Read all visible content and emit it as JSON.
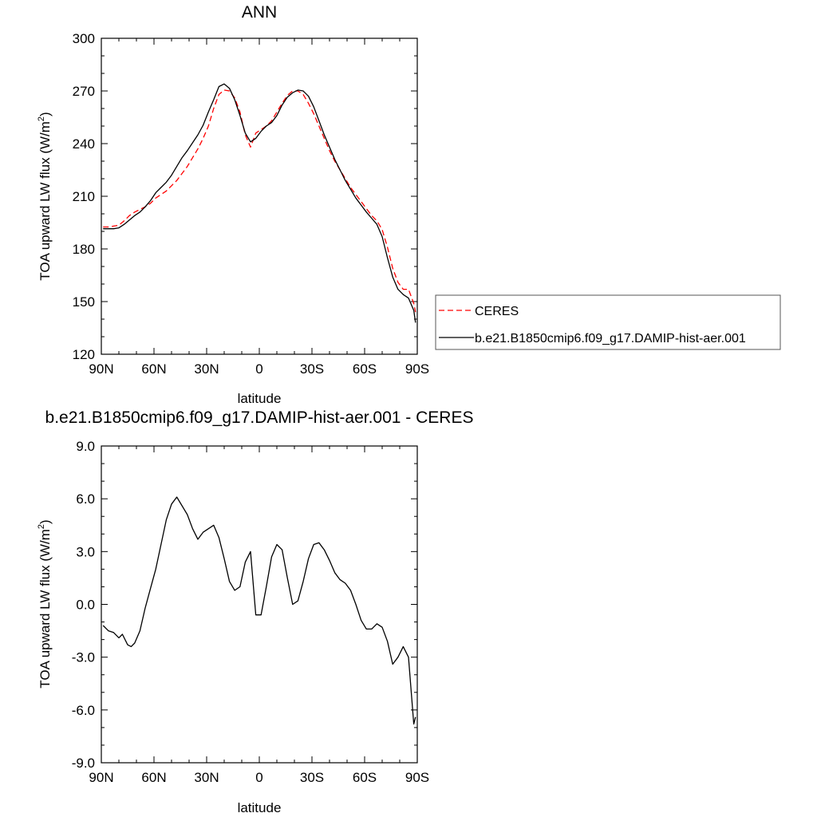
{
  "colors": {
    "model": "#000000",
    "ceres": "#ff0000",
    "frame": "#000000",
    "legend_border": "#555555"
  },
  "chart_data": [
    {
      "type": "line",
      "title": "ANN",
      "xlabel": "latitude",
      "ylabel": "TOA upward LW flux (W/m",
      "ylabel_sup": "2",
      "ylabel_tail": ")",
      "xlim": [
        90,
        -90
      ],
      "ylim": [
        120,
        300
      ],
      "xticks": [
        {
          "value": 90,
          "label": "90N"
        },
        {
          "value": 60,
          "label": "60N"
        },
        {
          "value": 30,
          "label": "30N"
        },
        {
          "value": 0,
          "label": "0"
        },
        {
          "value": -30,
          "label": "30S"
        },
        {
          "value": -60,
          "label": "60S"
        },
        {
          "value": -90,
          "label": "90S"
        }
      ],
      "yticks": [
        {
          "value": 300,
          "label": "300"
        },
        {
          "value": 270,
          "label": "270"
        },
        {
          "value": 240,
          "label": "240"
        },
        {
          "value": 210,
          "label": "210"
        },
        {
          "value": 180,
          "label": "180"
        },
        {
          "value": 150,
          "label": "150"
        },
        {
          "value": 120,
          "label": "120"
        }
      ],
      "legend_position": "right",
      "series": [
        {
          "name": "CERES",
          "color": "#ff0000",
          "dash": "dashed",
          "x": [
            89,
            86,
            83,
            80,
            77,
            74,
            71,
            68,
            65,
            62,
            59,
            56,
            53,
            50,
            47,
            44,
            41,
            38,
            35,
            32,
            29,
            26,
            23,
            20,
            17,
            14,
            11,
            8,
            5,
            2,
            -1,
            -4,
            -7,
            -10,
            -13,
            -16,
            -19,
            -22,
            -25,
            -28,
            -31,
            -34,
            -37,
            -40,
            -43,
            -46,
            -49,
            -52,
            -55,
            -58,
            -61,
            -64,
            -67,
            -70,
            -73,
            -76,
            -79,
            -82,
            -85,
            -88,
            -89
          ],
          "y": [
            192.5,
            192.5,
            193,
            193.5,
            196,
            199,
            201,
            202.5,
            204,
            206,
            209,
            211,
            213,
            216,
            219,
            223,
            227,
            232,
            237,
            243,
            250,
            260,
            268,
            270.5,
            270,
            266,
            258,
            245,
            238,
            246,
            248,
            250,
            253,
            258,
            263,
            267.5,
            270,
            270,
            268,
            263,
            257,
            250,
            243,
            236,
            230,
            225,
            220,
            215,
            211,
            207,
            203,
            199,
            196,
            191,
            181,
            169,
            161,
            157,
            157,
            149,
            144
          ]
        },
        {
          "name": "b.e21.B1850cmip6.f09_g17.DAMIP-hist-aer.001",
          "color": "#000000",
          "dash": "solid",
          "x": [
            89,
            86,
            83,
            80,
            77,
            74,
            71,
            68,
            65,
            62,
            59,
            56,
            53,
            50,
            47,
            44,
            41,
            38,
            35,
            32,
            29,
            26,
            23,
            20,
            17,
            14,
            11,
            8,
            5,
            2,
            -1,
            -4,
            -7,
            -10,
            -13,
            -16,
            -19,
            -22,
            -25,
            -28,
            -31,
            -34,
            -37,
            -40,
            -43,
            -46,
            -49,
            -52,
            -55,
            -58,
            -61,
            -64,
            -67,
            -70,
            -73,
            -76,
            -79,
            -82,
            -85,
            -88,
            -89
          ],
          "y": [
            191.5,
            191.5,
            191.5,
            192,
            194,
            196.5,
            199,
            201,
            204,
            207.5,
            212,
            215,
            218,
            222,
            227,
            232,
            236,
            240.5,
            245,
            250.5,
            258,
            265,
            272.5,
            274,
            271.5,
            265,
            256,
            246,
            241,
            243,
            247,
            250,
            252,
            256,
            262,
            266.5,
            269,
            270.5,
            270,
            267,
            261,
            253,
            245,
            238,
            231,
            225,
            219,
            214,
            209,
            205,
            201,
            197.5,
            194,
            187,
            175,
            164,
            157,
            154,
            152,
            145,
            138
          ]
        }
      ]
    },
    {
      "type": "line",
      "title": "b.e21.B1850cmip6.f09_g17.DAMIP-hist-aer.001 - CERES",
      "xlabel": "latitude",
      "ylabel": "TOA upward LW flux (W/m",
      "ylabel_sup": "2",
      "ylabel_tail": ")",
      "xlim": [
        90,
        -90
      ],
      "ylim": [
        -9,
        9
      ],
      "xticks": [
        {
          "value": 90,
          "label": "90N"
        },
        {
          "value": 60,
          "label": "60N"
        },
        {
          "value": 30,
          "label": "30N"
        },
        {
          "value": 0,
          "label": "0"
        },
        {
          "value": -30,
          "label": "30S"
        },
        {
          "value": -60,
          "label": "60S"
        },
        {
          "value": -90,
          "label": "90S"
        }
      ],
      "yticks": [
        {
          "value": 9,
          "label": "9.0"
        },
        {
          "value": 6,
          "label": "6.0"
        },
        {
          "value": 3,
          "label": "3.0"
        },
        {
          "value": 0,
          "label": "0.0"
        },
        {
          "value": -3,
          "label": "-3.0"
        },
        {
          "value": -6,
          "label": "-6.0"
        },
        {
          "value": -9,
          "label": "-9.0"
        }
      ],
      "series": [
        {
          "color": "#000000",
          "dash": "solid",
          "x": [
            89,
            86,
            83,
            80,
            78,
            75,
            73,
            71,
            68,
            65,
            62,
            59,
            56,
            53,
            50,
            47,
            44,
            41,
            38,
            35,
            32,
            29,
            26,
            23,
            20,
            17,
            14,
            11,
            8,
            5,
            2,
            -1,
            -4,
            -7,
            -10,
            -13,
            -16,
            -19,
            -22,
            -25,
            -28,
            -31,
            -34,
            -37,
            -40,
            -43,
            -46,
            -49,
            -52,
            -55,
            -58,
            -61,
            -64,
            -67,
            -70,
            -73,
            -76,
            -79,
            -82,
            -85,
            -88,
            -89
          ],
          "y": [
            -1.2,
            -1.5,
            -1.6,
            -1.9,
            -1.7,
            -2.3,
            -2.4,
            -2.2,
            -1.5,
            -0.2,
            0.9,
            2.0,
            3.4,
            4.8,
            5.7,
            6.1,
            5.6,
            5.1,
            4.3,
            3.7,
            4.1,
            4.3,
            4.5,
            3.8,
            2.6,
            1.3,
            0.8,
            1.0,
            2.4,
            3.0,
            -0.6,
            -0.6,
            1.0,
            2.7,
            3.4,
            3.1,
            1.5,
            0.0,
            0.2,
            1.3,
            2.6,
            3.4,
            3.5,
            3.1,
            2.5,
            1.8,
            1.4,
            1.2,
            0.8,
            0.0,
            -0.9,
            -1.4,
            -1.4,
            -1.1,
            -1.3,
            -2.1,
            -3.4,
            -3.0,
            -2.4,
            -3.0,
            -6.8,
            -6.4
          ]
        }
      ]
    }
  ]
}
